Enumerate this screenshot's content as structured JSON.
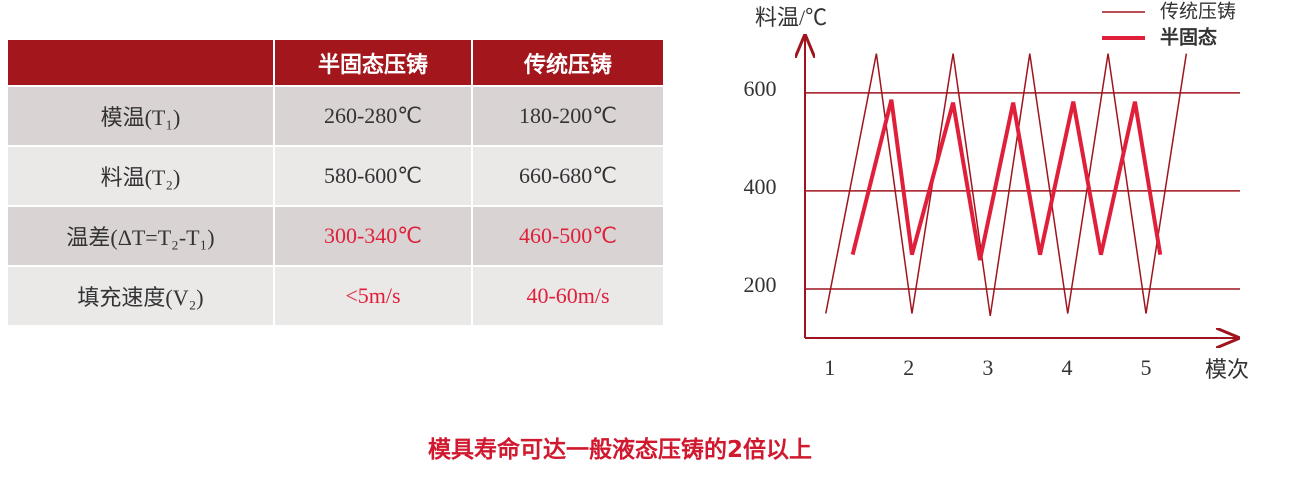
{
  "table": {
    "header": [
      "",
      "半固态压铸",
      "传统压铸"
    ],
    "rows": [
      [
        "模温(T₁)",
        "260-280℃",
        "180-200℃"
      ],
      [
        "料温(T₂)",
        "580-600℃",
        "660-680℃"
      ],
      [
        "温差(ΔT=T₂-T₁)",
        "300-340℃",
        "460-500℃"
      ],
      [
        "填充速度(V₂)",
        "<5m/s",
        "40-60m/s"
      ]
    ]
  },
  "chart_data": {
    "type": "line",
    "y_label": "料温/℃",
    "x_label": "模次",
    "xlim": [
      0.7,
      6.1
    ],
    "xticks": [
      1,
      2,
      3,
      4,
      5
    ],
    "ylim": [
      100,
      720
    ],
    "yticks": [
      200,
      400,
      600
    ],
    "grid": true,
    "series": [
      {
        "name": "传统压铸",
        "color": "#a0141e",
        "x": [
          0.95,
          1.59,
          2.04,
          2.56,
          3.03,
          3.53,
          4.01,
          4.52,
          5.0,
          5.51
        ],
        "values": [
          150,
          680,
          150,
          680,
          145,
          680,
          150,
          680,
          150,
          680
        ]
      },
      {
        "name": "半固态",
        "color": "#e0203a",
        "x": [
          1.29,
          1.78,
          2.04,
          2.56,
          2.9,
          3.32,
          3.66,
          4.08,
          4.43,
          4.86,
          5.18
        ],
        "values": [
          270,
          586,
          270,
          580,
          259,
          580,
          270,
          582,
          270,
          582,
          270
        ]
      }
    ]
  },
  "caption": "模具寿命可达一般液态压铸的2倍以上"
}
